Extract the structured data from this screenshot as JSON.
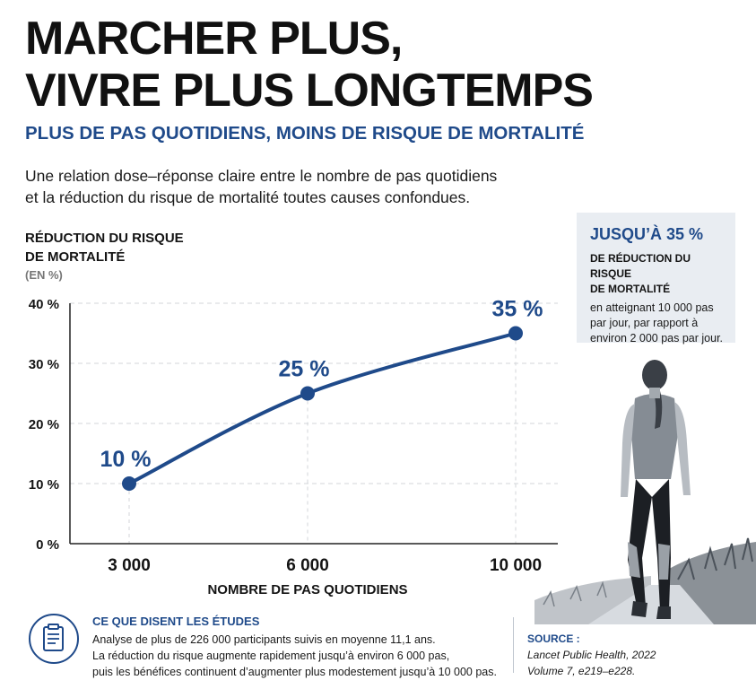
{
  "header": {
    "title_line1": "MARCHER PLUS,",
    "title_line2": "VIVRE PLUS LONGTEMPS",
    "subtitle": "PLUS DE PAS QUOTIDIENS, MOINS DE RISQUE DE MORTALITÉ",
    "intro_line1": "Une relation dose–réponse claire entre le nombre de pas quotidiens",
    "intro_line2": "et la réduction du risque de mortalité toutes causes confondues."
  },
  "callout": {
    "headline": "JUSQU’À 35 %",
    "sub_line1": "DE RÉDUCTION DU RISQUE",
    "sub_line2": "DE MORTALITÉ",
    "body_line1": "en atteignant 10 000 pas",
    "body_line2": "par jour, par rapport à",
    "body_line3": "environ 2 000 pas par jour."
  },
  "chart_data": {
    "type": "line",
    "ylabel_line1": "RÉDUCTION DU RISQUE",
    "ylabel_line2": "DE MORTALITÉ",
    "yunit": "(EN %)",
    "xlabel": "NOMBRE DE PAS QUOTIDIENS",
    "x": [
      3000,
      6000,
      10000
    ],
    "x_tick_labels": [
      "3 000",
      "6 000",
      "10 000"
    ],
    "y": [
      10,
      25,
      35
    ],
    "data_labels": [
      "10 %",
      "25 %",
      "35 %"
    ],
    "ylim": [
      0,
      40
    ],
    "y_ticks": [
      0,
      10,
      20,
      30,
      40
    ],
    "y_tick_labels": [
      "0 %",
      "10 %",
      "20 %",
      "30 %",
      "40 %"
    ],
    "grid": true,
    "line_color": "#1f4a8a"
  },
  "footer": {
    "studies_title": "CE QUE DISENT LES ÉTUDES",
    "studies_line1": "Analyse de plus de 226 000 participants suivis en moyenne 11,1 ans.",
    "studies_line2": "La réduction du risque augmente rapidement jusqu’à environ 6 000 pas,",
    "studies_line3": "puis les bénéfices continuent d’augmenter plus modestement jusqu’à 10 000 pas.",
    "source_title": "SOURCE :",
    "source_line1": "Lancet Public Health, 2022",
    "source_line2": "Volume 7, e219–e228.",
    "icon": "clipboard-icon"
  },
  "illustration": {
    "icon": "walking-woman-photo"
  },
  "colors": {
    "accent": "#1f4a8a",
    "callout_bg": "#e9edf2"
  }
}
